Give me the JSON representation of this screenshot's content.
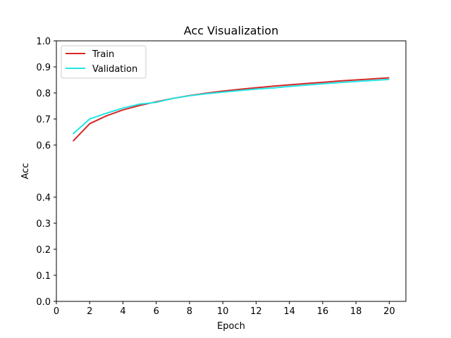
{
  "chart_data": {
    "type": "line",
    "title": "Acc Visualization",
    "xlabel": "Epoch",
    "ylabel": "Acc",
    "xlim": [
      0,
      21
    ],
    "ylim": [
      0.0,
      1.0
    ],
    "xticks": [
      0,
      2,
      4,
      6,
      8,
      10,
      12,
      14,
      16,
      18,
      20
    ],
    "yticks": [
      0.0,
      0.1,
      0.2,
      0.3,
      0.4,
      0.6,
      0.7,
      0.8,
      0.9,
      1.0
    ],
    "ytick_labels": [
      "0.0",
      "0.1",
      "0.2",
      "0.3",
      "0.4",
      "0.6",
      "0.7",
      "0.8",
      "0.9",
      "1.0"
    ],
    "grid": false,
    "legend_position": "top-left",
    "x": [
      1,
      2,
      3,
      4,
      5,
      6,
      7,
      8,
      9,
      10,
      11,
      12,
      13,
      14,
      15,
      16,
      17,
      18,
      19,
      20
    ],
    "series": [
      {
        "name": "Train",
        "color": "#d62728",
        "values": [
          0.615,
          0.682,
          0.712,
          0.735,
          0.752,
          0.766,
          0.779,
          0.79,
          0.799,
          0.807,
          0.814,
          0.82,
          0.826,
          0.831,
          0.836,
          0.841,
          0.846,
          0.85,
          0.854,
          0.858
        ]
      },
      {
        "name": "Validation",
        "color": "#22e5e5",
        "values": [
          0.643,
          0.7,
          0.722,
          0.742,
          0.757,
          0.764,
          0.779,
          0.789,
          0.797,
          0.803,
          0.809,
          0.815,
          0.819,
          0.825,
          0.83,
          0.835,
          0.84,
          0.844,
          0.848,
          0.852
        ]
      }
    ]
  }
}
